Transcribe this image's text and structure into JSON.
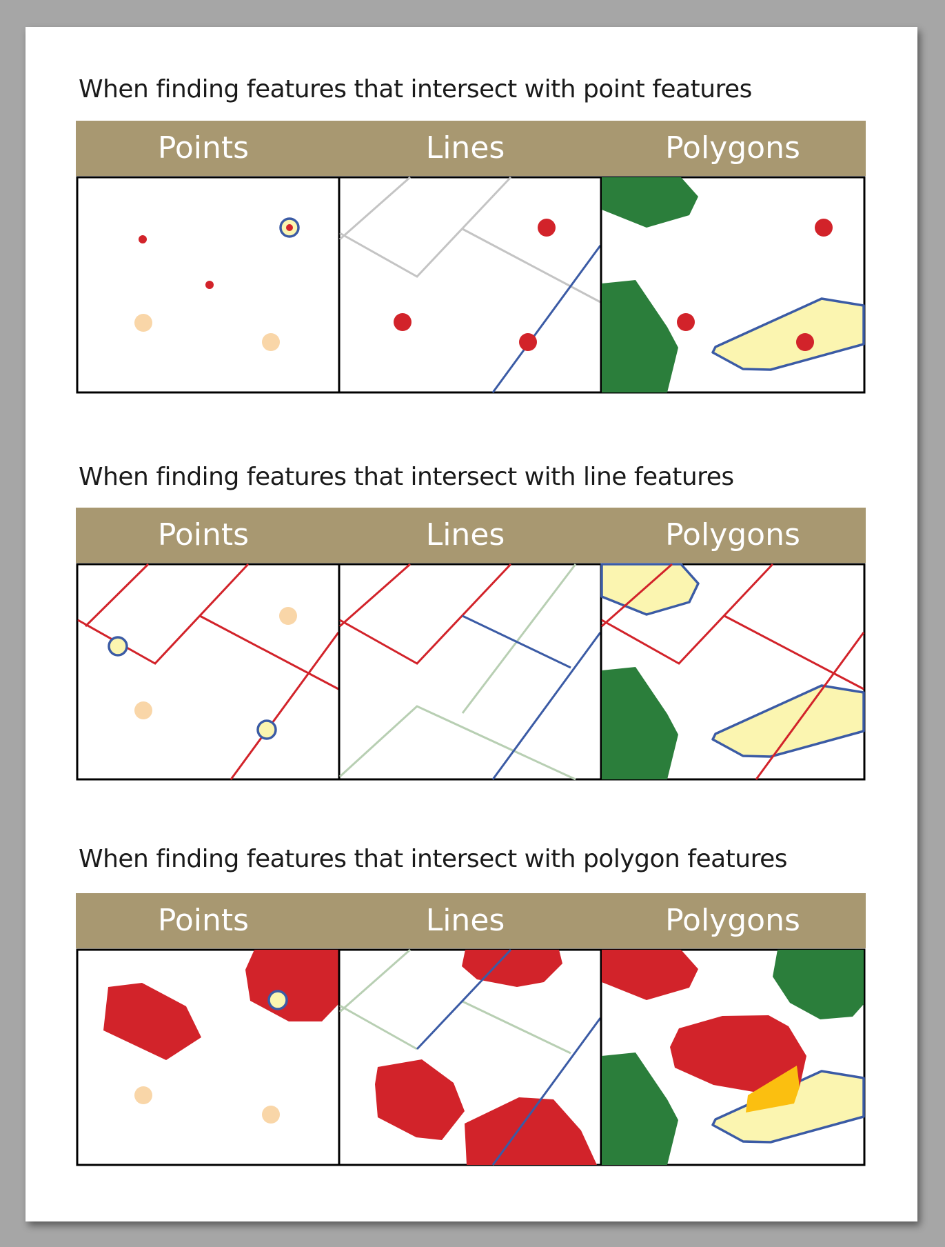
{
  "sections": [
    {
      "title": "When finding features that intersect with point features",
      "columns": [
        "Points",
        "Lines",
        "Polygons"
      ]
    },
    {
      "title": "When finding features that intersect with line features",
      "columns": [
        "Points",
        "Lines",
        "Polygons"
      ]
    },
    {
      "title": "When finding features that intersect with polygon features",
      "columns": [
        "Points",
        "Lines",
        "Polygons"
      ]
    }
  ],
  "colors": {
    "header": "#a89871",
    "input_feature_red": "#d2232a",
    "selected_outline_blue": "#3b5ba5",
    "selected_fill_yellow": "#fbf5b0",
    "point_peach": "#f9d6a8",
    "line_gray": "#c4c4c4",
    "line_pale_green": "#b8cfb3",
    "polygon_green": "#2b7e3b",
    "overlap_orange": "#fbbf10"
  }
}
